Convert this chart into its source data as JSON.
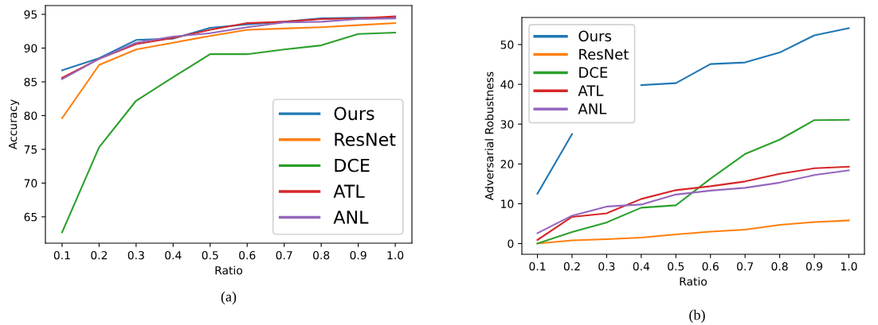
{
  "chart_data": [
    {
      "type": "line",
      "xlabel": "Ratio",
      "ylabel": "Accuracy",
      "annotations": [
        "(a)"
      ],
      "legend": "lower right",
      "grid": false,
      "x": [
        0.1,
        0.2,
        0.3,
        0.4,
        0.5,
        0.6,
        0.7,
        0.8,
        0.9,
        1.0
      ],
      "xlim": [
        0.055,
        1.045
      ],
      "xticks": [
        0.1,
        0.2,
        0.3,
        0.4,
        0.5,
        0.6,
        0.7,
        0.8,
        0.9,
        {
          "value": 1,
          "label": "1.0"
        }
      ],
      "ylim": [
        61.1,
        96.3
      ],
      "yticks": [
        65,
        70,
        75,
        80,
        85,
        90,
        95
      ],
      "series": [
        {
          "name": "Ours",
          "color": "#1f77b4",
          "values": [
            86.7,
            88.5,
            91.2,
            91.4,
            93.0,
            93.5,
            93.9,
            94.4,
            94.5,
            94.5
          ]
        },
        {
          "name": "ResNet",
          "color": "#ff7f0e",
          "values": [
            79.6,
            87.5,
            89.8,
            90.8,
            91.8,
            92.7,
            92.9,
            93.1,
            93.4,
            93.7
          ]
        },
        {
          "name": "DCE",
          "color": "#2ca02c",
          "values": [
            62.7,
            75.3,
            82.2,
            85.7,
            89.1,
            89.1,
            89.8,
            90.4,
            92.1,
            92.3
          ]
        },
        {
          "name": "ATL",
          "color": "#d62728",
          "values": [
            85.6,
            88.4,
            90.6,
            91.5,
            92.7,
            93.7,
            93.9,
            94.3,
            94.4,
            94.7
          ]
        },
        {
          "name": "ANL",
          "color": "#9467bd",
          "values": [
            85.4,
            88.4,
            90.8,
            91.7,
            92.2,
            93.1,
            93.8,
            93.9,
            94.3,
            94.4
          ]
        }
      ]
    },
    {
      "type": "line",
      "xlabel": "Ratio",
      "ylabel": "Adversarial Robustness",
      "annotations": [
        "(b)"
      ],
      "legend": "top left",
      "grid": false,
      "x": [
        0.1,
        0.2,
        0.3,
        0.4,
        0.5,
        0.6,
        0.7,
        0.8,
        0.9,
        1.0
      ],
      "xlim": [
        0.055,
        1.045
      ],
      "xticks": [
        0.1,
        0.2,
        0.3,
        0.4,
        0.5,
        0.6,
        0.7,
        0.8,
        0.9,
        {
          "value": 1,
          "label": "1.0"
        }
      ],
      "ylim": [
        -2.7,
        56.8
      ],
      "yticks": [
        0,
        10,
        20,
        30,
        40,
        50
      ],
      "series": [
        {
          "name": "Ours",
          "color": "#1f77b4",
          "values": [
            12.5,
            27.5,
            null,
            39.8,
            40.3,
            45.1,
            45.5,
            48.0,
            52.3,
            54.1
          ]
        },
        {
          "name": "ResNet",
          "color": "#ff7f0e",
          "values": [
            0,
            0.8,
            1.1,
            1.5,
            2.3,
            3.0,
            3.5,
            4.7,
            5.4,
            5.8
          ]
        },
        {
          "name": "DCE",
          "color": "#2ca02c",
          "values": [
            0,
            2.9,
            5.3,
            9.0,
            9.6,
            16.3,
            22.5,
            26.1,
            31.0,
            31.1
          ]
        },
        {
          "name": "ATL",
          "color": "#d62728",
          "values": [
            0.9,
            6.7,
            7.6,
            11.2,
            13.4,
            14.4,
            15.6,
            17.5,
            18.9,
            19.3
          ]
        },
        {
          "name": "ANL",
          "color": "#9467bd",
          "values": [
            2.6,
            7.0,
            9.3,
            9.8,
            12.3,
            13.3,
            14.0,
            15.3,
            17.2,
            18.4
          ]
        }
      ]
    }
  ]
}
